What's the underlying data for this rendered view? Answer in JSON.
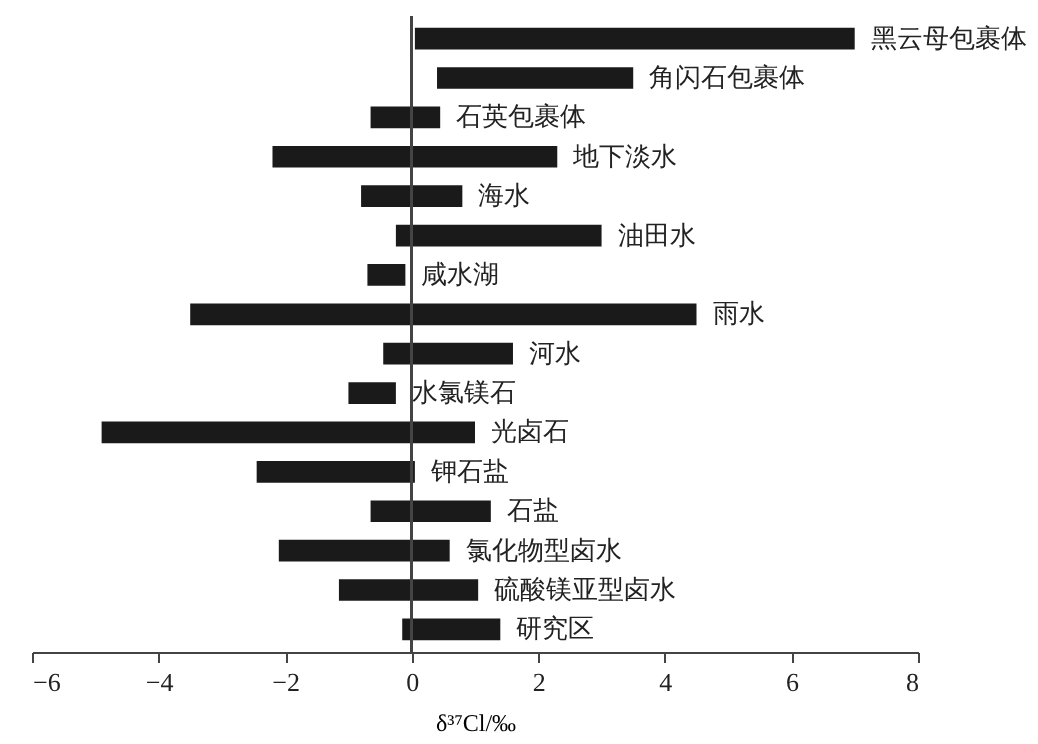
{
  "chart_data": {
    "type": "bar",
    "orientation": "horizontal",
    "xlabel": "δ³⁷Cl/‰",
    "categories": [
      "黑云母包裹体",
      "角闪石包裹体",
      "石英包裹体",
      "地下淡水",
      "海水",
      "油田水",
      "咸水湖",
      "雨水",
      "河水",
      "水氯镁石",
      "光卤石",
      "钾石盐",
      "石盐",
      "氯化物型卤水",
      "硫酸镁亚型卤水",
      "研究区"
    ],
    "base": [
      0.05,
      0.4,
      -0.65,
      -2.2,
      -0.8,
      -0.25,
      -0.7,
      -3.5,
      -0.45,
      -1.0,
      -4.9,
      -2.45,
      -0.65,
      -2.1,
      -1.15,
      -0.15
    ],
    "values": [
      6.95,
      3.1,
      1.1,
      4.5,
      1.6,
      3.25,
      0.6,
      8.0,
      2.05,
      0.75,
      5.9,
      2.5,
      1.9,
      2.7,
      2.2,
      1.55
    ],
    "color": "#1a1a1a",
    "xlim": [
      -6,
      8
    ],
    "xticks": [
      -6,
      -4,
      -2,
      0,
      2,
      4,
      6,
      8
    ],
    "ref_lines": [
      {
        "axis": "x",
        "value": 0,
        "color": "#444444"
      }
    ],
    "grid": false
  }
}
